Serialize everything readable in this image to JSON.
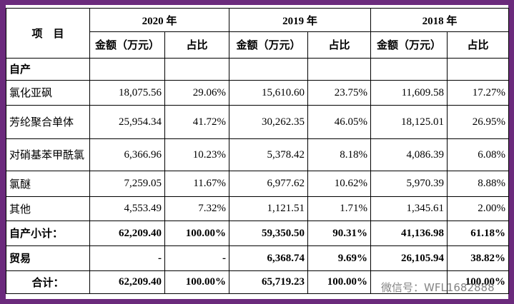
{
  "header": {
    "item": "项　目",
    "years": [
      "2020 年",
      "2019 年",
      "2018 年"
    ],
    "sub": [
      "金额（万元）",
      "占比"
    ]
  },
  "rows": [
    {
      "label": "自产",
      "cells": [
        "",
        "",
        "",
        "",
        "",
        ""
      ],
      "bold": true
    },
    {
      "label": "氯化亚砜",
      "cells": [
        "18,075.56",
        "29.06%",
        "15,610.60",
        "23.75%",
        "11,609.58",
        "17.27%"
      ],
      "bold": false
    },
    {
      "label": "芳纶聚合单体",
      "cells": [
        "25,954.34",
        "41.72%",
        "30,262.35",
        "46.05%",
        "18,125.01",
        "26.95%"
      ],
      "bold": false
    },
    {
      "label": "对硝基苯甲酰氯",
      "cells": [
        "6,366.96",
        "10.23%",
        "5,378.42",
        "8.18%",
        "4,086.39",
        "6.08%"
      ],
      "bold": false
    },
    {
      "label": "氯醚",
      "cells": [
        "7,259.05",
        "11.67%",
        "6,977.62",
        "10.62%",
        "5,970.39",
        "8.88%"
      ],
      "bold": false
    },
    {
      "label": "其他",
      "cells": [
        "4,553.49",
        "7.32%",
        "1,121.51",
        "1.71%",
        "1,345.61",
        "2.00%"
      ],
      "bold": false
    },
    {
      "label": "自产小计：",
      "cells": [
        "62,209.40",
        "100.00%",
        "59,350.50",
        "90.31%",
        "41,136.98",
        "61.18%"
      ],
      "bold": true
    },
    {
      "label": "贸易",
      "cells": [
        "-",
        "-",
        "6,368.74",
        "9.69%",
        "26,105.94",
        "38.82%"
      ],
      "bold": true
    },
    {
      "label": "合计：",
      "cells": [
        "62,209.40",
        "100.00%",
        "65,719.23",
        "100.00%",
        "",
        "100.00%"
      ],
      "bold": true
    }
  ],
  "watermark": "微信号：WFL1682888"
}
